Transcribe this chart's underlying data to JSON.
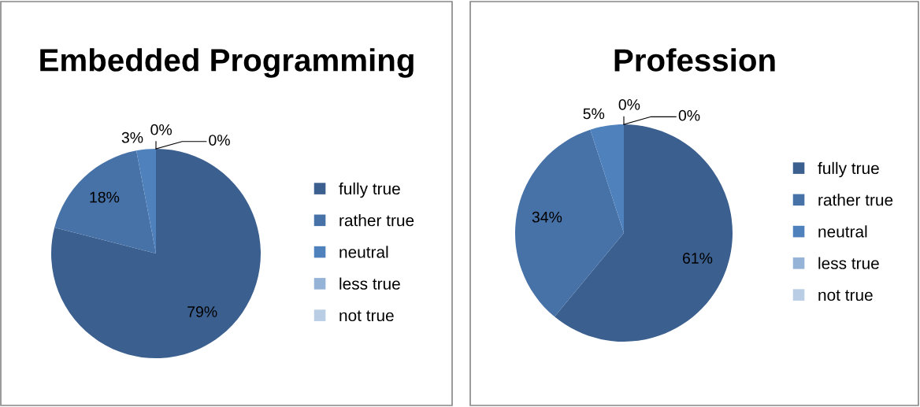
{
  "chart_data": [
    {
      "type": "pie",
      "title": "Embedded Programming",
      "categories": [
        "fully true",
        "rather true",
        "neutral",
        "less true",
        "not true"
      ],
      "values": [
        79,
        18,
        3,
        0,
        0
      ],
      "value_labels": [
        "79%",
        "18%",
        "3%",
        "0%",
        "0%"
      ],
      "colors": [
        "#3b5f8e",
        "#4672a8",
        "#4f81bd",
        "#95b3d7",
        "#b9cde5"
      ],
      "legend": "right"
    },
    {
      "type": "pie",
      "title": "Profession",
      "categories": [
        "fully true",
        "rather true",
        "neutral",
        "less true",
        "not true"
      ],
      "values": [
        61,
        34,
        5,
        0,
        0
      ],
      "value_labels": [
        "61%",
        "34%",
        "5%",
        "0%",
        "0%"
      ],
      "colors": [
        "#3b5f8e",
        "#4672a8",
        "#4f81bd",
        "#95b3d7",
        "#b9cde5"
      ],
      "legend": "right"
    }
  ]
}
